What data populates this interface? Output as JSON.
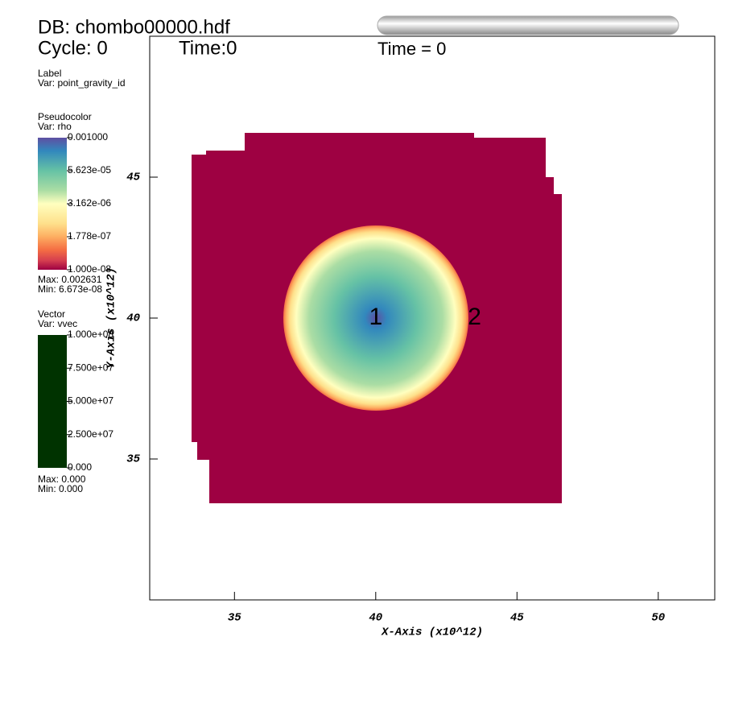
{
  "header": {
    "db": "DB: chombo00000.hdf",
    "cycle": "Cycle: 0",
    "time": "Time:0",
    "time_title": "Time = 0"
  },
  "legends": {
    "label": {
      "title": "Label",
      "var": "Var: point_gravity_id"
    },
    "pseudocolor": {
      "title": "Pseudocolor",
      "var": "Var: rho",
      "ticks": [
        "0.001000",
        "5.623e-05",
        "3.162e-06",
        "1.778e-07",
        "1.000e-08"
      ],
      "max": "Max:  0.002631",
      "min": "Min:  6.673e-08"
    },
    "vector": {
      "title": "Vector",
      "var": "Var: vvec",
      "ticks": [
        "1.000e+08",
        "7.500e+07",
        "5.000e+07",
        "2.500e+07",
        "0.000"
      ],
      "max": "Max:  0.000",
      "min": "Min:  0.000"
    }
  },
  "plot": {
    "xlabel": "X-Axis (x10^12)",
    "ylabel": "Y-Axis (x10^12)",
    "xlim": [
      32,
      52
    ],
    "ylim": [
      30,
      50
    ],
    "xticks": [
      35,
      40,
      45,
      50
    ],
    "yticks": [
      35,
      40,
      45
    ],
    "point_labels": [
      {
        "label": "1",
        "x": 40,
        "y": 40
      },
      {
        "label": "2",
        "x": 43.5,
        "y": 40
      }
    ]
  }
}
